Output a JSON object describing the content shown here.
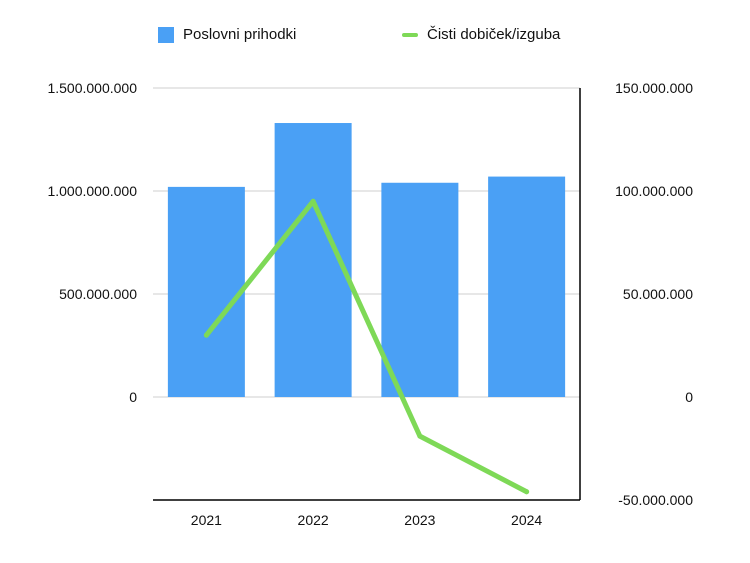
{
  "chart_data": {
    "type": "bar",
    "categories": [
      "2021",
      "2022",
      "2023",
      "2024"
    ],
    "series": [
      {
        "name": "Poslovni prihodki",
        "type": "bar",
        "axis": "left",
        "color": "#4aa0f5",
        "values": [
          1020000000,
          1330000000,
          1040000000,
          1070000000
        ]
      },
      {
        "name": "Čisti dobiček/izguba",
        "type": "line",
        "axis": "right",
        "color": "#7ed957",
        "values": [
          30000000,
          95000000,
          -19000000,
          -46000000
        ]
      }
    ],
    "y_left": {
      "min": -500000000,
      "max": 1500000000,
      "ticks": [
        0,
        500000000,
        1000000000,
        1500000000
      ],
      "tick_labels": [
        "0",
        "500.000.000",
        "1.000.000.000",
        "1.500.000.000"
      ]
    },
    "y_right": {
      "min": -50000000,
      "max": 150000000,
      "ticks": [
        -50000000,
        0,
        50000000,
        100000000,
        150000000
      ],
      "tick_labels": [
        "-50.000.000",
        "0",
        "50.000.000",
        "100.000.000",
        "150.000.000"
      ]
    },
    "grid": true,
    "legend": "top"
  }
}
